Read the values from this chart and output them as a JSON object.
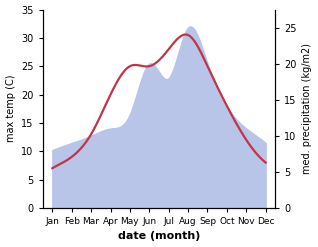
{
  "months": [
    "Jan",
    "Feb",
    "Mar",
    "Apr",
    "May",
    "Jun",
    "Jul",
    "Aug",
    "Sep",
    "Oct",
    "Nov",
    "Dec"
  ],
  "month_indices": [
    0,
    1,
    2,
    3,
    4,
    5,
    6,
    7,
    8,
    9,
    10,
    11
  ],
  "temp_max": [
    7,
    9,
    13,
    20,
    25,
    25,
    28,
    30.5,
    25,
    18,
    12,
    8
  ],
  "precipitation": [
    8,
    9,
    10,
    11,
    13,
    20,
    18,
    25,
    20,
    14,
    11,
    9
  ],
  "temp_ylim": [
    0,
    35
  ],
  "precip_ylim": [
    0,
    27.5
  ],
  "temp_yticks": [
    0,
    5,
    10,
    15,
    20,
    25,
    30,
    35
  ],
  "precip_yticks": [
    0,
    5,
    10,
    15,
    20,
    25
  ],
  "xlabel": "date (month)",
  "ylabel_left": "max temp (C)",
  "ylabel_right": "med. precipitation (kg/m2)",
  "temp_color": "#c0354a",
  "precip_fill_color": "#b8c4e8",
  "background_color": "#ffffff"
}
